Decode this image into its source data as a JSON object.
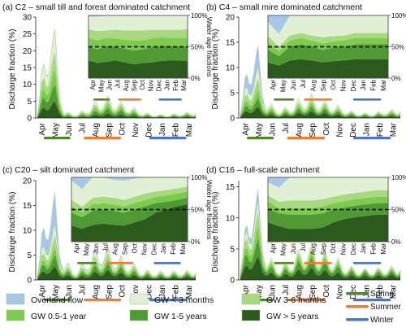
{
  "colors": {
    "overland": "#a6c8e6",
    "gw_lt3m": "#e1f0d4",
    "gw_3_6m": "#a8d982",
    "gw_05_1y": "#7ccb4c",
    "gw_1_5y": "#4f9a32",
    "gw_gt5y": "#2c5a1c",
    "spring": "#4e8a2a",
    "summer": "#ee7d30",
    "winter": "#4a77c4"
  },
  "legend": {
    "items": [
      {
        "label": "Overland flow",
        "color_key": "overland"
      },
      {
        "label": "GW < 3 months",
        "color_key": "gw_lt3m"
      },
      {
        "label": "GW 3-6 months",
        "color_key": "gw_3_6m"
      },
      {
        "label": "GW 0.5-1 year",
        "color_key": "gw_05_1y"
      },
      {
        "label": "GW 1-5 years",
        "color_key": "gw_1_5y"
      },
      {
        "label": "GW > 5 years",
        "color_key": "gw_gt5y"
      }
    ],
    "seasons": [
      {
        "label": "Spring",
        "color_key": "spring"
      },
      {
        "label": "Summer",
        "color_key": "summer"
      },
      {
        "label": "Winter",
        "color_key": "winter"
      }
    ]
  },
  "chart_data": [
    {
      "type": "area",
      "title": "(a) C2 – small till and forest dominated catchment",
      "ylabel": "Discharge fraction (%)",
      "ylim": [
        0,
        30
      ],
      "yticks": [
        0,
        5,
        10,
        15,
        20,
        25,
        30
      ],
      "months": [
        "Apr",
        "May",
        "Jun",
        "Jul",
        "Aug",
        "Sep",
        "Oct",
        "Nov",
        "Dec",
        "Jan",
        "Feb",
        "Mar"
      ],
      "series": [
        {
          "key": "gw_gt5y",
          "values": [
            0.3,
            5.0,
            0.3,
            0.2,
            0.5,
            1.0,
            0.8,
            0.6,
            0.3,
            0.2,
            0.2,
            0.3
          ]
        },
        {
          "key": "gw_1_5y",
          "values": [
            0.3,
            5.0,
            0.3,
            0.2,
            0.6,
            1.2,
            1.0,
            0.7,
            0.3,
            0.2,
            0.2,
            0.3
          ]
        },
        {
          "key": "gw_05_1y",
          "values": [
            0.2,
            4.5,
            0.3,
            0.2,
            0.6,
            0.9,
            0.8,
            0.5,
            0.2,
            0.1,
            0.1,
            0.2
          ]
        },
        {
          "key": "gw_3_6m",
          "values": [
            0.2,
            5.0,
            0.2,
            0.1,
            0.4,
            0.8,
            0.6,
            0.4,
            0.2,
            0.1,
            0.1,
            0.2
          ]
        },
        {
          "key": "gw_lt3m",
          "values": [
            0.2,
            7.0,
            0.3,
            0.2,
            0.5,
            1.0,
            0.7,
            0.5,
            0.2,
            0.1,
            0.1,
            0.2
          ]
        },
        {
          "key": "overland",
          "values": [
            0.0,
            0.5,
            0.0,
            0.0,
            0.0,
            0.1,
            0.0,
            0.0,
            0.0,
            0.0,
            0.0,
            0.0
          ]
        }
      ],
      "inset": {
        "ylabel": "Water age fractions",
        "yticks": [
          "100%",
          "50%",
          "0%"
        ],
        "months": [
          "Apr",
          "May",
          "Jun",
          "Jul",
          "Aug",
          "Sep",
          "Oct",
          "Nov",
          "Dec",
          "Jan",
          "Feb",
          "Mar"
        ],
        "dashed_level": 0.5,
        "series": [
          {
            "key": "gw_gt5y",
            "values": [
              0.28,
              0.24,
              0.26,
              0.28,
              0.25,
              0.22,
              0.24,
              0.25,
              0.27,
              0.28,
              0.28,
              0.27
            ]
          },
          {
            "key": "gw_1_5y",
            "values": [
              0.22,
              0.22,
              0.24,
              0.22,
              0.22,
              0.22,
              0.22,
              0.24,
              0.24,
              0.23,
              0.23,
              0.23
            ]
          },
          {
            "key": "gw_05_1y",
            "values": [
              0.14,
              0.14,
              0.14,
              0.13,
              0.14,
              0.16,
              0.14,
              0.14,
              0.14,
              0.13,
              0.13,
              0.14
            ]
          },
          {
            "key": "gw_3_6m",
            "values": [
              0.14,
              0.15,
              0.12,
              0.14,
              0.15,
              0.16,
              0.16,
              0.14,
              0.12,
              0.13,
              0.13,
              0.14
            ]
          },
          {
            "key": "gw_lt3m",
            "values": [
              0.2,
              0.23,
              0.24,
              0.23,
              0.24,
              0.24,
              0.24,
              0.23,
              0.23,
              0.23,
              0.23,
              0.22
            ]
          },
          {
            "key": "overland",
            "values": [
              0.02,
              0.02,
              0.0,
              0.0,
              0.0,
              0.0,
              0.0,
              0.0,
              0.0,
              0.0,
              0.0,
              0.0
            ]
          }
        ]
      }
    },
    {
      "type": "area",
      "title": "(b) C4 – small mire dominated catchment",
      "ylabel": "Discharge fraction (%)",
      "ylim": [
        0,
        20
      ],
      "yticks": [
        0,
        5,
        10,
        15,
        20
      ],
      "months": [
        "Apr",
        "May",
        "Jun",
        "Jul",
        "Aug",
        "Sep",
        "Oct",
        "Nov",
        "Dec",
        "Jan",
        "Feb",
        "Mar"
      ],
      "series": [
        {
          "key": "gw_gt5y",
          "values": [
            0.3,
            2.0,
            0.6,
            0.3,
            0.6,
            1.0,
            0.8,
            0.6,
            0.3,
            0.2,
            0.2,
            0.3
          ]
        },
        {
          "key": "gw_1_5y",
          "values": [
            0.3,
            1.5,
            0.5,
            0.3,
            0.5,
            0.7,
            0.6,
            0.5,
            0.3,
            0.2,
            0.2,
            0.3
          ]
        },
        {
          "key": "gw_05_1y",
          "values": [
            0.2,
            1.5,
            0.4,
            0.2,
            0.3,
            0.5,
            0.4,
            0.3,
            0.2,
            0.1,
            0.1,
            0.2
          ]
        },
        {
          "key": "gw_3_6m",
          "values": [
            0.2,
            2.0,
            0.4,
            0.2,
            0.3,
            0.6,
            0.4,
            0.3,
            0.2,
            0.1,
            0.1,
            0.2
          ]
        },
        {
          "key": "gw_lt3m",
          "values": [
            0.2,
            2.5,
            0.5,
            0.2,
            0.4,
            0.8,
            0.5,
            0.4,
            0.2,
            0.1,
            0.1,
            0.2
          ]
        },
        {
          "key": "overland",
          "values": [
            0.0,
            4.5,
            0.0,
            0.0,
            0.0,
            0.0,
            0.0,
            0.0,
            0.0,
            0.0,
            0.0,
            0.0
          ]
        }
      ],
      "inset": {
        "ylabel": "Water age fractions",
        "yticks": [
          "100%",
          "50%",
          "0%"
        ],
        "months": [
          "Apr",
          "May",
          "Jun",
          "Jul",
          "Aug",
          "Sep",
          "Oct",
          "Nov",
          "Dec",
          "Jan",
          "Feb",
          "Mar"
        ],
        "dashed_level": 0.5,
        "series": [
          {
            "key": "gw_gt5y",
            "values": [
              0.25,
              0.2,
              0.28,
              0.3,
              0.28,
              0.25,
              0.27,
              0.28,
              0.3,
              0.3,
              0.3,
              0.3
            ]
          },
          {
            "key": "gw_1_5y",
            "values": [
              0.2,
              0.15,
              0.22,
              0.24,
              0.22,
              0.2,
              0.22,
              0.22,
              0.24,
              0.24,
              0.24,
              0.24
            ]
          },
          {
            "key": "gw_05_1y",
            "values": [
              0.12,
              0.08,
              0.1,
              0.1,
              0.1,
              0.1,
              0.1,
              0.1,
              0.1,
              0.1,
              0.1,
              0.1
            ]
          },
          {
            "key": "gw_3_6m",
            "values": [
              0.1,
              0.07,
              0.08,
              0.08,
              0.08,
              0.1,
              0.08,
              0.08,
              0.08,
              0.08,
              0.08,
              0.08
            ]
          },
          {
            "key": "gw_lt3m",
            "values": [
              0.23,
              0.2,
              0.32,
              0.28,
              0.32,
              0.35,
              0.33,
              0.32,
              0.28,
              0.28,
              0.28,
              0.28
            ]
          },
          {
            "key": "overland",
            "values": [
              0.1,
              0.3,
              0.0,
              0.0,
              0.0,
              0.0,
              0.0,
              0.0,
              0.0,
              0.0,
              0.0,
              0.0
            ]
          }
        ]
      }
    },
    {
      "type": "area",
      "title": "(c) C20 – silt dominated catchment",
      "ylabel": "Discharge fraction (%)",
      "ylim": [
        0,
        20
      ],
      "yticks": [
        0,
        5,
        10,
        15,
        20
      ],
      "months": [
        "Apr",
        "May",
        "Jun",
        "Jul",
        "Aug",
        "Sep",
        "Oct",
        "Nov",
        "Dec",
        "Jan",
        "Feb",
        "Mar"
      ],
      "series": [
        {
          "key": "gw_gt5y",
          "values": [
            0.4,
            2.5,
            0.8,
            0.4,
            1.0,
            1.5,
            1.2,
            0.8,
            0.5,
            0.4,
            0.4,
            0.5
          ]
        },
        {
          "key": "gw_1_5y",
          "values": [
            0.3,
            2.0,
            0.6,
            0.3,
            0.8,
            1.0,
            0.8,
            0.6,
            0.4,
            0.3,
            0.3,
            0.3
          ]
        },
        {
          "key": "gw_05_1y",
          "values": [
            0.2,
            1.5,
            0.4,
            0.2,
            0.5,
            0.7,
            0.5,
            0.4,
            0.2,
            0.2,
            0.2,
            0.2
          ]
        },
        {
          "key": "gw_3_6m",
          "values": [
            0.2,
            2.0,
            0.4,
            0.2,
            0.6,
            0.8,
            0.5,
            0.4,
            0.2,
            0.2,
            0.2,
            0.2
          ]
        },
        {
          "key": "gw_lt3m",
          "values": [
            0.2,
            2.5,
            0.6,
            0.2,
            0.8,
            1.0,
            0.6,
            0.5,
            0.2,
            0.2,
            0.2,
            0.2
          ]
        },
        {
          "key": "overland",
          "values": [
            0.1,
            6.5,
            0.2,
            0.0,
            0.3,
            0.5,
            0.2,
            0.1,
            0.0,
            0.0,
            0.0,
            0.0
          ]
        }
      ],
      "inset": {
        "ylabel": "Water age fractions",
        "yticks": [
          "100%",
          "50%",
          "0%"
        ],
        "months": [
          "Apr",
          "May",
          "Jun",
          "Jul",
          "Aug",
          "Sep",
          "Oct",
          "Nov",
          "Dec",
          "Jan",
          "Feb",
          "Mar"
        ],
        "dashed_level": 0.5,
        "series": [
          {
            "key": "gw_gt5y",
            "values": [
              0.25,
              0.2,
              0.26,
              0.28,
              0.26,
              0.25,
              0.3,
              0.35,
              0.45,
              0.5,
              0.55,
              0.58
            ]
          },
          {
            "key": "gw_1_5y",
            "values": [
              0.2,
              0.18,
              0.22,
              0.22,
              0.22,
              0.2,
              0.2,
              0.2,
              0.15,
              0.12,
              0.1,
              0.1
            ]
          },
          {
            "key": "gw_05_1y",
            "values": [
              0.1,
              0.08,
              0.1,
              0.1,
              0.1,
              0.1,
              0.1,
              0.1,
              0.1,
              0.1,
              0.1,
              0.1
            ]
          },
          {
            "key": "gw_3_6m",
            "values": [
              0.1,
              0.08,
              0.1,
              0.1,
              0.1,
              0.1,
              0.1,
              0.1,
              0.08,
              0.08,
              0.08,
              0.08
            ]
          },
          {
            "key": "gw_lt3m",
            "values": [
              0.3,
              0.28,
              0.32,
              0.3,
              0.28,
              0.3,
              0.28,
              0.25,
              0.22,
              0.2,
              0.17,
              0.14
            ]
          },
          {
            "key": "overland",
            "values": [
              0.05,
              0.18,
              0.0,
              0.0,
              0.04,
              0.05,
              0.02,
              0.0,
              0.0,
              0.0,
              0.0,
              0.0
            ]
          }
        ]
      }
    },
    {
      "type": "area",
      "title": "(d) C16 – full-scale catchment",
      "ylabel": "Discharge fraction (%)",
      "ylim": [
        0,
        16
      ],
      "yticks": [
        0,
        5,
        10,
        15
      ],
      "months": [
        "Apr",
        "May",
        "Jun",
        "Jul",
        "Aug",
        "Sep",
        "Oct",
        "Nov",
        "Dec",
        "Jan",
        "Feb",
        "Mar"
      ],
      "series": [
        {
          "key": "gw_gt5y",
          "values": [
            0.5,
            3.5,
            1.0,
            0.5,
            1.0,
            1.5,
            1.2,
            1.0,
            0.6,
            0.5,
            0.5,
            0.6
          ]
        },
        {
          "key": "gw_1_5y",
          "values": [
            0.4,
            2.5,
            0.8,
            0.4,
            0.8,
            1.2,
            1.0,
            0.8,
            0.5,
            0.4,
            0.4,
            0.4
          ]
        },
        {
          "key": "gw_05_1y",
          "values": [
            0.2,
            2.0,
            0.4,
            0.2,
            0.4,
            0.6,
            0.5,
            0.4,
            0.2,
            0.2,
            0.2,
            0.2
          ]
        },
        {
          "key": "gw_3_6m",
          "values": [
            0.2,
            2.0,
            0.3,
            0.2,
            0.3,
            0.5,
            0.4,
            0.3,
            0.2,
            0.1,
            0.1,
            0.2
          ]
        },
        {
          "key": "gw_lt3m",
          "values": [
            0.2,
            2.0,
            0.4,
            0.2,
            0.4,
            0.6,
            0.5,
            0.4,
            0.2,
            0.1,
            0.1,
            0.2
          ]
        },
        {
          "key": "overland",
          "values": [
            0.0,
            2.0,
            0.0,
            0.0,
            0.0,
            0.1,
            0.0,
            0.0,
            0.0,
            0.0,
            0.0,
            0.0
          ]
        }
      ],
      "inset": {
        "ylabel": "Water age fractions",
        "yticks": [
          "100%",
          "50%",
          "0%"
        ],
        "months": [
          "Apr",
          "May",
          "Jun",
          "Jul",
          "Aug",
          "Sep",
          "Oct",
          "Nov",
          "Dec",
          "Jan",
          "Feb",
          "Mar"
        ],
        "dashed_level": 0.5,
        "series": [
          {
            "key": "gw_gt5y",
            "values": [
              0.3,
              0.24,
              0.2,
              0.2,
              0.2,
              0.22,
              0.3,
              0.35,
              0.38,
              0.4,
              0.42,
              0.42
            ]
          },
          {
            "key": "gw_1_5y",
            "values": [
              0.22,
              0.2,
              0.22,
              0.22,
              0.22,
              0.22,
              0.2,
              0.18,
              0.18,
              0.18,
              0.18,
              0.18
            ]
          },
          {
            "key": "gw_05_1y",
            "values": [
              0.1,
              0.08,
              0.1,
              0.1,
              0.1,
              0.1,
              0.1,
              0.1,
              0.1,
              0.1,
              0.1,
              0.1
            ]
          },
          {
            "key": "gw_3_6m",
            "values": [
              0.1,
              0.1,
              0.12,
              0.12,
              0.12,
              0.12,
              0.1,
              0.1,
              0.1,
              0.1,
              0.1,
              0.1
            ]
          },
          {
            "key": "gw_lt3m",
            "values": [
              0.2,
              0.22,
              0.36,
              0.36,
              0.36,
              0.34,
              0.3,
              0.27,
              0.24,
              0.22,
              0.2,
              0.2
            ]
          },
          {
            "key": "overland",
            "values": [
              0.08,
              0.16,
              0.0,
              0.0,
              0.0,
              0.0,
              0.0,
              0.0,
              0.0,
              0.0,
              0.0,
              0.0
            ]
          }
        ]
      }
    }
  ]
}
